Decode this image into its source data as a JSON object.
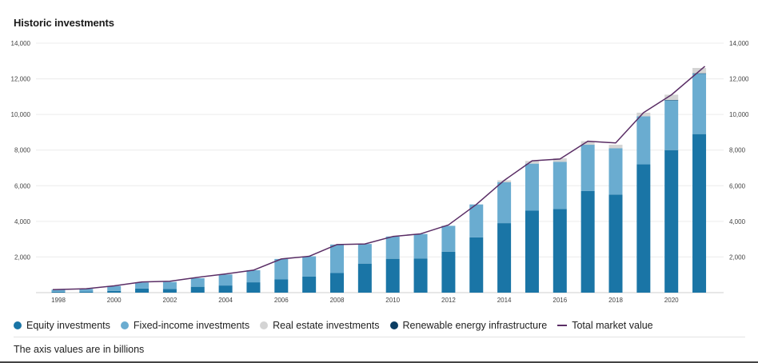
{
  "chart_data": {
    "type": "bar",
    "title": "Historic investments",
    "note": "The axis values are in billions",
    "x": [
      1998,
      1999,
      2000,
      2001,
      2002,
      2003,
      2004,
      2005,
      2006,
      2007,
      2008,
      2009,
      2010,
      2011,
      2012,
      2013,
      2014,
      2015,
      2016,
      2017,
      2018,
      2019,
      2020,
      2021
    ],
    "x_tick_labels": [
      "1998",
      "2000",
      "2002",
      "2004",
      "2006",
      "2008",
      "2010",
      "2012",
      "2014",
      "2016",
      "2018",
      "2020"
    ],
    "y_tick_labels": [
      "2,000",
      "4,000",
      "6,000",
      "8,000",
      "10,000",
      "12,000",
      "14,000"
    ],
    "ylim": [
      0,
      14000
    ],
    "grid": true,
    "legend_position": "bottom",
    "stacked": true,
    "series": [
      {
        "name": "Equity investments",
        "type": "bar",
        "color": "#1a75a6",
        "values": [
          50,
          60,
          100,
          230,
          200,
          330,
          400,
          580,
          740,
          900,
          1100,
          1630,
          1900,
          1920,
          2300,
          3100,
          3900,
          4600,
          4700,
          5700,
          5500,
          7200,
          8000,
          8900
        ]
      },
      {
        "name": "Fixed-income investments",
        "type": "bar",
        "color": "#6aacd0",
        "values": [
          120,
          150,
          270,
          340,
          400,
          480,
          620,
          680,
          1150,
          1140,
          1600,
          1100,
          1250,
          1370,
          1450,
          1850,
          2300,
          2640,
          2640,
          2600,
          2600,
          2700,
          2800,
          3400
        ]
      },
      {
        "name": "Real estate investments",
        "type": "bar",
        "color": "#d4d4d4",
        "values": [
          0,
          0,
          0,
          0,
          0,
          0,
          0,
          0,
          0,
          0,
          0,
          0,
          0,
          0,
          0,
          0,
          100,
          150,
          200,
          200,
          200,
          200,
          300,
          300
        ]
      },
      {
        "name": "Renewable energy infrastructure",
        "type": "bar",
        "color": "#0b3d62",
        "values": [
          0,
          0,
          0,
          0,
          0,
          0,
          0,
          0,
          0,
          0,
          0,
          0,
          0,
          0,
          0,
          0,
          0,
          0,
          0,
          0,
          0,
          0,
          10,
          10
        ]
      },
      {
        "name": "Total market value",
        "type": "line",
        "color": "#5a2d65",
        "values": [
          170,
          220,
          380,
          600,
          640,
          860,
          1050,
          1260,
          1890,
          2040,
          2700,
          2730,
          3150,
          3300,
          3800,
          4950,
          6300,
          7400,
          7500,
          8500,
          8400,
          10100,
          11100,
          12700
        ]
      }
    ]
  }
}
